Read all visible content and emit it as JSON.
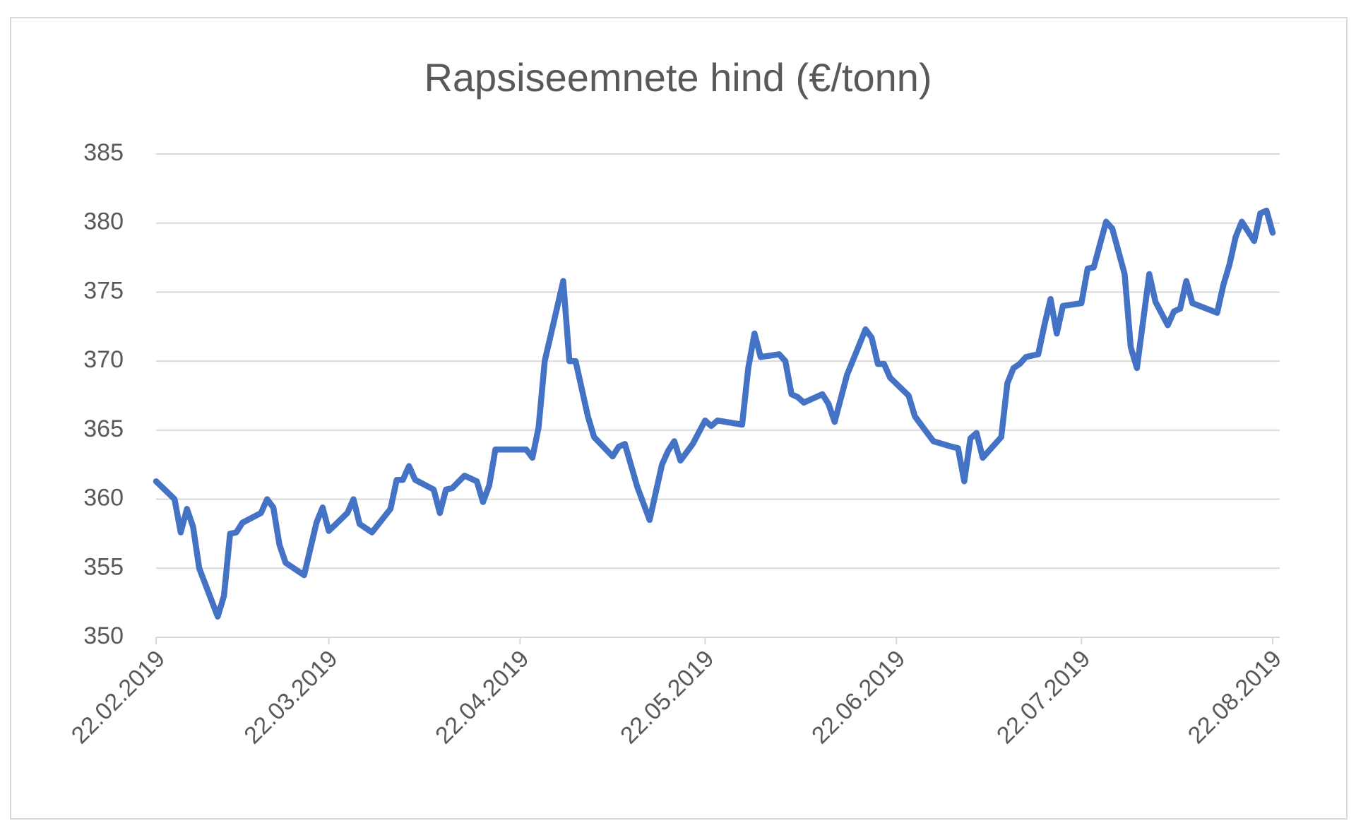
{
  "chart_data": {
    "type": "line",
    "title": "Rapsiseemnete hind (€/tonn)",
    "x": [
      "22.02.2019",
      "25.02.2019",
      "26.02.2019",
      "27.02.2019",
      "28.02.2019",
      "01.03.2019",
      "04.03.2019",
      "05.03.2019",
      "06.03.2019",
      "07.03.2019",
      "08.03.2019",
      "11.03.2019",
      "12.03.2019",
      "13.03.2019",
      "14.03.2019",
      "15.03.2019",
      "18.03.2019",
      "20.03.2019",
      "21.03.2019",
      "22.03.2019",
      "25.03.2019",
      "26.03.2019",
      "27.03.2019",
      "29.03.2019",
      "01.04.2019",
      "02.04.2019",
      "03.04.2019",
      "04.04.2019",
      "05.04.2019",
      "08.04.2019",
      "09.04.2019",
      "10.04.2019",
      "11.04.2019",
      "13.04.2019",
      "15.04.2019",
      "16.04.2019",
      "17.04.2019",
      "18.04.2019",
      "23.04.2019",
      "24.04.2019",
      "25.04.2019",
      "26.04.2019",
      "29.04.2019",
      "30.04.2019",
      "01.05.2019",
      "03.05.2019",
      "04.05.2019",
      "07.05.2019",
      "08.05.2019",
      "09.05.2019",
      "11.05.2019",
      "13.05.2019",
      "15.05.2019",
      "16.05.2019",
      "17.05.2019",
      "18.05.2019",
      "20.05.2019",
      "22.05.2019",
      "23.05.2019",
      "24.05.2019",
      "28.05.2019",
      "29.05.2019",
      "30.05.2019",
      "31.05.2019",
      "03.06.2019",
      "04.06.2019",
      "05.06.2019",
      "06.06.2019",
      "07.06.2019",
      "10.06.2019",
      "11.06.2019",
      "12.06.2019",
      "14.06.2019",
      "17.06.2019",
      "18.06.2019",
      "19.06.2019",
      "20.06.2019",
      "21.06.2019",
      "24.06.2019",
      "25.06.2019",
      "28.06.2019",
      "01.07.2019",
      "02.07.2019",
      "03.07.2019",
      "04.07.2019",
      "05.07.2019",
      "06.07.2019",
      "09.07.2019",
      "10.07.2019",
      "11.07.2019",
      "12.07.2019",
      "13.07.2019",
      "15.07.2019",
      "16.07.2019",
      "17.07.2019",
      "18.07.2019",
      "19.07.2019",
      "22.07.2019",
      "23.07.2019",
      "24.07.2019",
      "26.07.2019",
      "27.07.2019",
      "29.07.2019",
      "30.07.2019",
      "31.07.2019",
      "02.08.2019",
      "03.08.2019",
      "05.08.2019",
      "06.08.2019",
      "07.08.2019",
      "08.08.2019",
      "09.08.2019",
      "13.08.2019",
      "14.08.2019",
      "15.08.2019",
      "16.08.2019",
      "17.08.2019",
      "19.08.2019",
      "20.08.2019",
      "21.08.2019",
      "22.08.2019"
    ],
    "series": [
      {
        "name": "Rapsiseemnete hind",
        "color": "#4472c4",
        "values": [
          361.3,
          360,
          357.6,
          359.3,
          358,
          355,
          351.5,
          353,
          357.5,
          357.6,
          358.3,
          359,
          360,
          359.4,
          356.7,
          355.4,
          354.5,
          358.3,
          359.4,
          357.7,
          359,
          360,
          358.2,
          357.6,
          359.3,
          361.4,
          361.4,
          362.4,
          361.4,
          360.7,
          359,
          360.7,
          360.8,
          361.7,
          361.3,
          359.8,
          361,
          363.6,
          363.6,
          363,
          365.2,
          370,
          375.8,
          370,
          370,
          366,
          364.5,
          363.1,
          363.8,
          364,
          360.9,
          358.5,
          362.5,
          363.5,
          364.2,
          362.8,
          364,
          365.7,
          365.3,
          365.7,
          365.4,
          369.5,
          372,
          370.3,
          370.5,
          370,
          367.6,
          367.4,
          367,
          367.6,
          366.9,
          365.6,
          369,
          372.3,
          371.7,
          369.8,
          369.8,
          368.8,
          367.5,
          366,
          364.2,
          363.8,
          363.7,
          361.3,
          364.4,
          364.8,
          363,
          364.5,
          368.4,
          369.5,
          369.8,
          370.3,
          370.5,
          372.6,
          374.5,
          372,
          374,
          374.2,
          376.7,
          376.8,
          380.1,
          379.6,
          376.3,
          371,
          369.5,
          376.3,
          374.3,
          372.6,
          373.6,
          373.8,
          375.8,
          374.2,
          373.5,
          375.5,
          377,
          379,
          380.1,
          378.7,
          380.7,
          380.9,
          379.3
        ]
      }
    ],
    "xlim": [
      "22.02.2019",
      "22.08.2019"
    ],
    "xticks": [
      "22.02.2019",
      "22.03.2019",
      "22.04.2019",
      "22.05.2019",
      "22.06.2019",
      "22.07.2019",
      "22.08.2019"
    ],
    "ylim": [
      350,
      385
    ],
    "yticks": [
      350,
      355,
      360,
      365,
      370,
      375,
      380,
      385
    ],
    "grid": true
  }
}
